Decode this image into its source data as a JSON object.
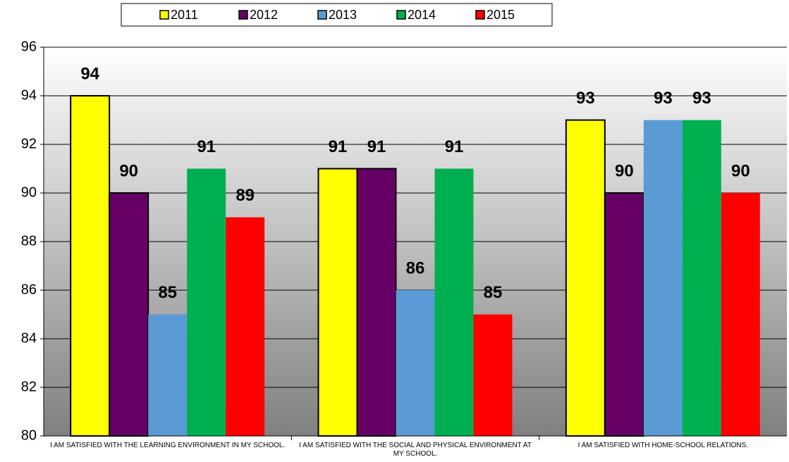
{
  "chart_data": {
    "type": "bar",
    "categories": [
      "I AM SATISFIED WITH THE LEARNING ENVIRONMENT IN MY SCHOOL.",
      "I AM SATISFIED WITH THE SOCIAL AND PHYSICAL ENVIRONMENT AT MY SCHOOL.",
      "I AM SATISFIED WITH HOME-SCHOOL RELATIONS."
    ],
    "series": [
      {
        "name": "2011",
        "color": "#ffff00",
        "outline": true,
        "values": [
          94,
          91,
          93
        ]
      },
      {
        "name": "2012",
        "color": "#660066",
        "outline": true,
        "values": [
          90,
          91,
          90
        ]
      },
      {
        "name": "2013",
        "color": "#5b9bd5",
        "outline": false,
        "values": [
          85,
          86,
          93
        ]
      },
      {
        "name": "2014",
        "color": "#00b050",
        "outline": false,
        "values": [
          91,
          91,
          93
        ]
      },
      {
        "name": "2015",
        "color": "#ff0000",
        "outline": false,
        "values": [
          89,
          85,
          90
        ]
      }
    ],
    "ylim": [
      80,
      96
    ],
    "yticks": [
      80,
      82,
      84,
      86,
      88,
      90,
      92,
      94,
      96
    ],
    "grid": true,
    "legend": "top"
  }
}
